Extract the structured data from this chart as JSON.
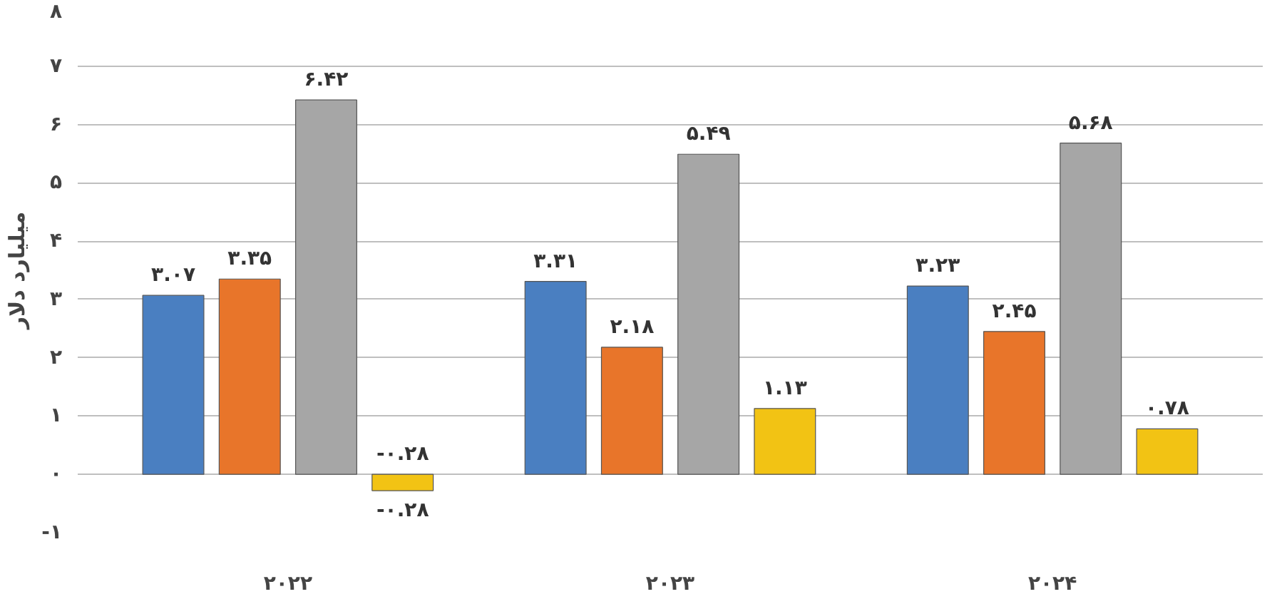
{
  "chart_data": {
    "type": "bar",
    "ylabel": "میلیارد دلار",
    "categories": [
      "۲۰۲۲",
      "۲۰۲۳",
      "۲۰۲۴"
    ],
    "series": [
      {
        "color": "#4a7fc1",
        "values": [
          3.07,
          3.31,
          3.23
        ],
        "value_labels": [
          "۳.۰۷",
          "۳.۳۱",
          "۳.۲۳"
        ]
      },
      {
        "color": "#e8752a",
        "values": [
          3.35,
          2.18,
          2.45
        ],
        "value_labels": [
          "۳.۳۵",
          "۲.۱۸",
          "۲.۴۵"
        ]
      },
      {
        "color": "#a6a6a6",
        "values": [
          6.42,
          5.49,
          5.68
        ],
        "value_labels": [
          "۶.۴۲",
          "۵.۴۹",
          "۵.۶۸"
        ]
      },
      {
        "color": "#f2c314",
        "values": [
          -0.28,
          1.13,
          0.78
        ],
        "value_labels": [
          "-۰.۲۸",
          "۱.۱۳",
          "۰.۷۸"
        ]
      }
    ],
    "annotations": [
      "-۰.۲۸"
    ],
    "ylim": [
      -1,
      8
    ],
    "yticks": [
      {
        "value": -1,
        "label": "-۱"
      },
      {
        "value": 0,
        "label": "۰"
      },
      {
        "value": 1,
        "label": "۱"
      },
      {
        "value": 2,
        "label": "۲"
      },
      {
        "value": 3,
        "label": "۳"
      },
      {
        "value": 4,
        "label": "۴"
      },
      {
        "value": 5,
        "label": "۵"
      },
      {
        "value": 6,
        "label": "۶"
      },
      {
        "value": 7,
        "label": "۷"
      },
      {
        "value": 8,
        "label": "۸"
      }
    ],
    "grid": "y"
  }
}
